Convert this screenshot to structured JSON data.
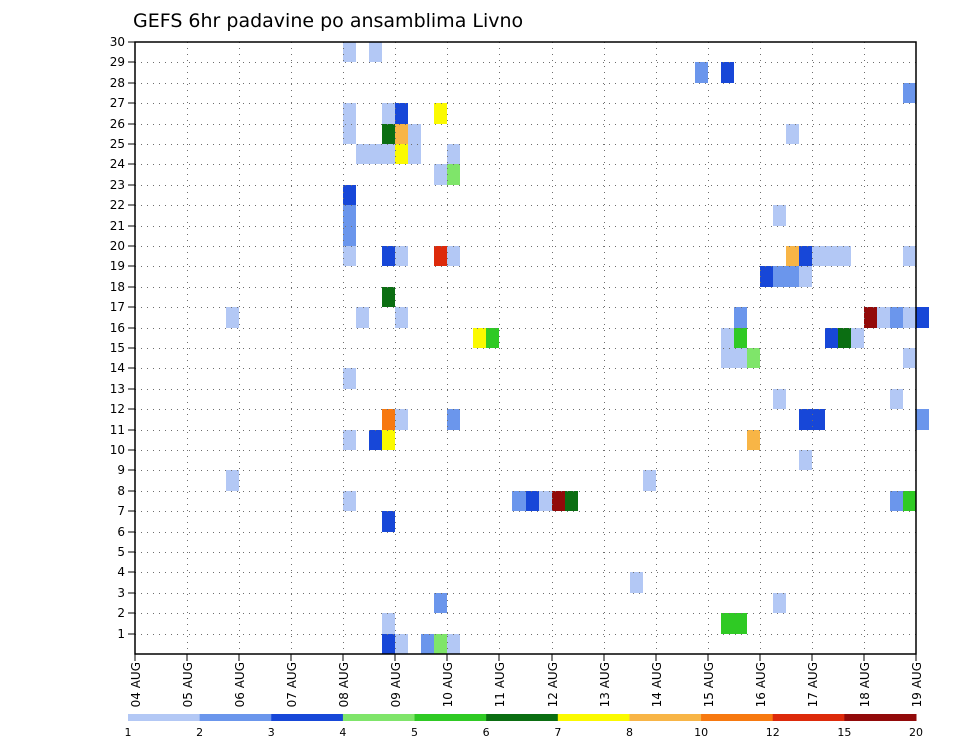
{
  "chart_data": {
    "type": "heatmap",
    "title": "GEFS 6hr padavine po ansamblima Livno",
    "xlabel": "",
    "ylabel": "",
    "x_tick_labels": [
      "04 AUG",
      "05 AUG",
      "06 AUG",
      "07 AUG",
      "08 AUG",
      "09 AUG",
      "10 AUG",
      "11 AUG",
      "12 AUG",
      "13 AUG",
      "14 AUG",
      "15 AUG",
      "16 AUG",
      "17 AUG",
      "18 AUG",
      "19 AUG"
    ],
    "y_tick_labels": [
      "1",
      "2",
      "3",
      "4",
      "5",
      "6",
      "7",
      "8",
      "9",
      "10",
      "11",
      "12",
      "13",
      "14",
      "15",
      "16",
      "17",
      "18",
      "19",
      "20",
      "21",
      "22",
      "23",
      "24",
      "25",
      "26",
      "27",
      "28",
      "29",
      "30"
    ],
    "xlim": [
      0,
      15
    ],
    "ylim": [
      0,
      30
    ],
    "time_step_days": 0.25,
    "colorbar": {
      "labels": [
        "1",
        "2",
        "3",
        "4",
        "5",
        "6",
        "7",
        "8",
        "10",
        "12",
        "15",
        "20"
      ],
      "colors": [
        "#b3c8f5",
        "#6b96ec",
        "#1747d8",
        "#7fe56a",
        "#2fca24",
        "#0b6e12",
        "#fbfa00",
        "#f8b546",
        "#f77910",
        "#dd2a0b",
        "#920a0a"
      ]
    },
    "grid": true,
    "cells": [
      {
        "t": 4.0,
        "m": 30,
        "c": 0
      },
      {
        "t": 4.5,
        "m": 30,
        "c": 0
      },
      {
        "t": 10.75,
        "m": 29,
        "c": 1
      },
      {
        "t": 11.25,
        "m": 29,
        "c": 2
      },
      {
        "t": 14.75,
        "m": 28,
        "c": 1
      },
      {
        "t": 4.0,
        "m": 27,
        "c": 0
      },
      {
        "t": 4.75,
        "m": 27,
        "c": 0
      },
      {
        "t": 5.0,
        "m": 27,
        "c": 2
      },
      {
        "t": 5.75,
        "m": 27,
        "c": 6
      },
      {
        "t": 4.0,
        "m": 26,
        "c": 0
      },
      {
        "t": 4.75,
        "m": 26,
        "c": 5
      },
      {
        "t": 5.0,
        "m": 26,
        "c": 7
      },
      {
        "t": 5.25,
        "m": 26,
        "c": 0
      },
      {
        "t": 12.5,
        "m": 26,
        "c": 0
      },
      {
        "t": 4.25,
        "m": 25,
        "c": 0
      },
      {
        "t": 4.5,
        "m": 25,
        "c": 0
      },
      {
        "t": 4.75,
        "m": 25,
        "c": 0
      },
      {
        "t": 5.0,
        "m": 25,
        "c": 6
      },
      {
        "t": 5.25,
        "m": 25,
        "c": 0
      },
      {
        "t": 6.0,
        "m": 25,
        "c": 0
      },
      {
        "t": 5.75,
        "m": 24,
        "c": 0
      },
      {
        "t": 6.0,
        "m": 24,
        "c": 3
      },
      {
        "t": 4.0,
        "m": 23,
        "c": 2
      },
      {
        "t": 4.0,
        "m": 22,
        "c": 1
      },
      {
        "t": 12.25,
        "m": 22,
        "c": 0
      },
      {
        "t": 4.0,
        "m": 21,
        "c": 1
      },
      {
        "t": 4.0,
        "m": 20,
        "c": 0
      },
      {
        "t": 4.75,
        "m": 20,
        "c": 2
      },
      {
        "t": 5.0,
        "m": 20,
        "c": 0
      },
      {
        "t": 5.75,
        "m": 20,
        "c": 9
      },
      {
        "t": 6.0,
        "m": 20,
        "c": 0
      },
      {
        "t": 12.5,
        "m": 20,
        "c": 7
      },
      {
        "t": 12.75,
        "m": 20,
        "c": 2
      },
      {
        "t": 13.0,
        "m": 20,
        "c": 0
      },
      {
        "t": 13.25,
        "m": 20,
        "c": 0
      },
      {
        "t": 13.5,
        "m": 20,
        "c": 0
      },
      {
        "t": 14.75,
        "m": 20,
        "c": 0
      },
      {
        "t": 12.0,
        "m": 19,
        "c": 2
      },
      {
        "t": 12.25,
        "m": 19,
        "c": 1
      },
      {
        "t": 12.5,
        "m": 19,
        "c": 1
      },
      {
        "t": 12.75,
        "m": 19,
        "c": 0
      },
      {
        "t": 4.75,
        "m": 18,
        "c": 5
      },
      {
        "t": 1.75,
        "m": 17,
        "c": 0
      },
      {
        "t": 4.25,
        "m": 17,
        "c": 0
      },
      {
        "t": 5.0,
        "m": 17,
        "c": 0
      },
      {
        "t": 11.5,
        "m": 17,
        "c": 1
      },
      {
        "t": 14.0,
        "m": 17,
        "c": 10
      },
      {
        "t": 14.25,
        "m": 17,
        "c": 0
      },
      {
        "t": 14.5,
        "m": 17,
        "c": 1
      },
      {
        "t": 14.75,
        "m": 17,
        "c": 0
      },
      {
        "t": 15.0,
        "m": 17,
        "c": 2
      },
      {
        "t": 6.5,
        "m": 16,
        "c": 6
      },
      {
        "t": 6.75,
        "m": 16,
        "c": 4
      },
      {
        "t": 11.25,
        "m": 16,
        "c": 0
      },
      {
        "t": 11.5,
        "m": 16,
        "c": 4
      },
      {
        "t": 13.25,
        "m": 16,
        "c": 2
      },
      {
        "t": 13.5,
        "m": 16,
        "c": 5
      },
      {
        "t": 13.75,
        "m": 16,
        "c": 0
      },
      {
        "t": 11.25,
        "m": 15,
        "c": 0
      },
      {
        "t": 11.5,
        "m": 15,
        "c": 0
      },
      {
        "t": 11.75,
        "m": 15,
        "c": 3
      },
      {
        "t": 14.75,
        "m": 15,
        "c": 0
      },
      {
        "t": 4.0,
        "m": 14,
        "c": 0
      },
      {
        "t": 12.25,
        "m": 13,
        "c": 0
      },
      {
        "t": 14.5,
        "m": 13,
        "c": 0
      },
      {
        "t": 4.75,
        "m": 12,
        "c": 8
      },
      {
        "t": 5.0,
        "m": 12,
        "c": 0
      },
      {
        "t": 6.0,
        "m": 12,
        "c": 1
      },
      {
        "t": 12.75,
        "m": 12,
        "c": 2
      },
      {
        "t": 13.0,
        "m": 12,
        "c": 2
      },
      {
        "t": 15.0,
        "m": 12,
        "c": 1
      },
      {
        "t": 4.0,
        "m": 11,
        "c": 0
      },
      {
        "t": 4.5,
        "m": 11,
        "c": 2
      },
      {
        "t": 4.75,
        "m": 11,
        "c": 6
      },
      {
        "t": 11.75,
        "m": 11,
        "c": 7
      },
      {
        "t": 12.75,
        "m": 10,
        "c": 0
      },
      {
        "t": 1.75,
        "m": 9,
        "c": 0
      },
      {
        "t": 9.75,
        "m": 9,
        "c": 0
      },
      {
        "t": 4.0,
        "m": 8,
        "c": 0
      },
      {
        "t": 7.25,
        "m": 8,
        "c": 1
      },
      {
        "t": 7.5,
        "m": 8,
        "c": 2
      },
      {
        "t": 7.75,
        "m": 8,
        "c": 0
      },
      {
        "t": 8.0,
        "m": 8,
        "c": 10
      },
      {
        "t": 8.25,
        "m": 8,
        "c": 5
      },
      {
        "t": 14.5,
        "m": 8,
        "c": 1
      },
      {
        "t": 14.75,
        "m": 8,
        "c": 4
      },
      {
        "t": 4.75,
        "m": 7,
        "c": 2
      },
      {
        "t": 9.5,
        "m": 4,
        "c": 0
      },
      {
        "t": 5.75,
        "m": 3,
        "c": 1
      },
      {
        "t": 12.25,
        "m": 3,
        "c": 0
      },
      {
        "t": 4.75,
        "m": 2,
        "c": 0
      },
      {
        "t": 11.25,
        "m": 2,
        "c": 4
      },
      {
        "t": 11.5,
        "m": 2,
        "c": 4
      },
      {
        "t": 4.75,
        "m": 1,
        "c": 2
      },
      {
        "t": 5.0,
        "m": 1,
        "c": 0
      },
      {
        "t": 5.5,
        "m": 1,
        "c": 1
      },
      {
        "t": 5.75,
        "m": 1,
        "c": 3
      },
      {
        "t": 6.0,
        "m": 1,
        "c": 0
      }
    ]
  }
}
